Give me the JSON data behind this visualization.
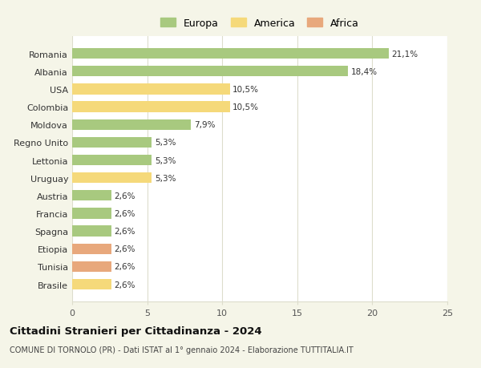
{
  "title": "Cittadini Stranieri per Cittadinanza - 2024",
  "subtitle": "COMUNE DI TORNOLO (PR) - Dati ISTAT al 1° gennaio 2024 - Elaborazione TUTTITALIA.IT",
  "categories": [
    "Romania",
    "Albania",
    "USA",
    "Colombia",
    "Moldova",
    "Regno Unito",
    "Lettonia",
    "Uruguay",
    "Austria",
    "Francia",
    "Spagna",
    "Etiopia",
    "Tunisia",
    "Brasile"
  ],
  "values": [
    21.1,
    18.4,
    10.5,
    10.5,
    7.9,
    5.3,
    5.3,
    5.3,
    2.6,
    2.6,
    2.6,
    2.6,
    2.6,
    2.6
  ],
  "labels": [
    "21,1%",
    "18,4%",
    "10,5%",
    "10,5%",
    "7,9%",
    "5,3%",
    "5,3%",
    "5,3%",
    "2,6%",
    "2,6%",
    "2,6%",
    "2,6%",
    "2,6%",
    "2,6%"
  ],
  "continent": [
    "Europa",
    "Europa",
    "America",
    "America",
    "Europa",
    "Europa",
    "Europa",
    "America",
    "Europa",
    "Europa",
    "Europa",
    "Africa",
    "Africa",
    "America"
  ],
  "colors": {
    "Europa": "#a8c97f",
    "America": "#f5d97a",
    "Africa": "#e8a87c"
  },
  "legend_labels": [
    "Europa",
    "America",
    "Africa"
  ],
  "xlim": [
    0,
    25
  ],
  "xticks": [
    0,
    5,
    10,
    15,
    20,
    25
  ],
  "background_color": "#f5f5e8",
  "bar_background": "#ffffff",
  "grid_color": "#ddddcc"
}
